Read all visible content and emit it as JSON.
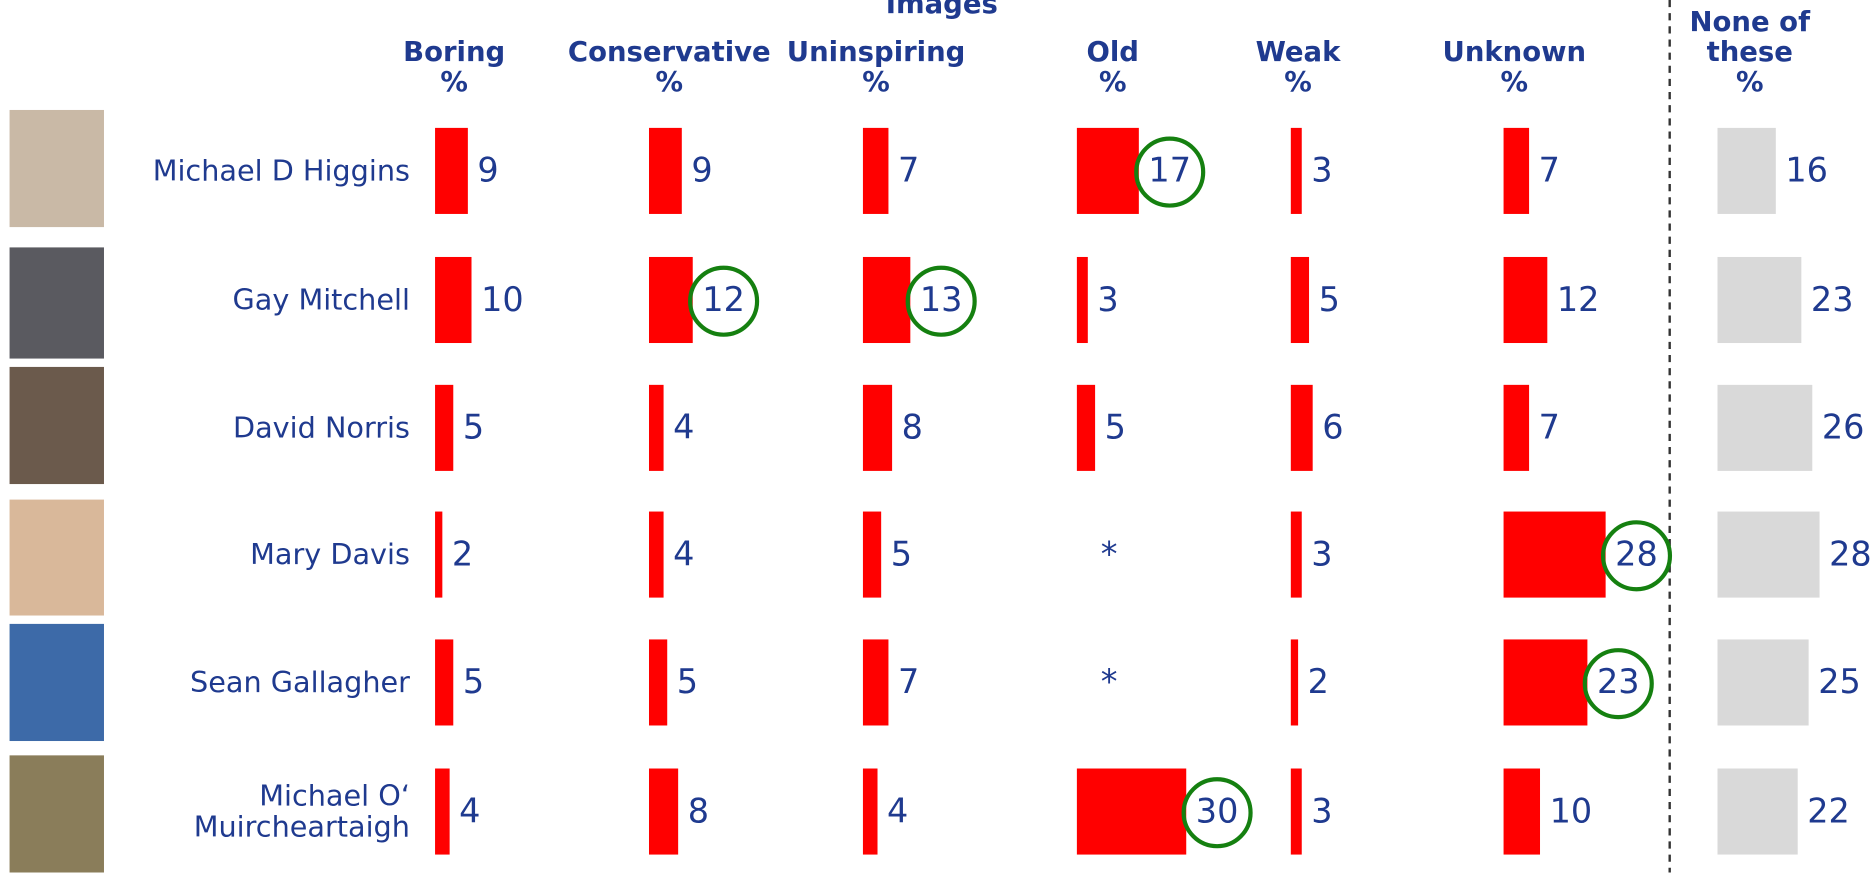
{
  "chart_data": {
    "type": "bar",
    "title": "Images",
    "unit": "%",
    "categories": [
      "Michael D Higgins",
      "Gay Mitchell",
      "David Norris",
      "Mary Davis",
      "Sean Gallagher",
      "Michael O‘ Muircheartaigh"
    ],
    "series": [
      {
        "name": "Boring",
        "color": "#ff0000",
        "values": [
          9,
          10,
          5,
          2,
          5,
          4
        ],
        "circled": []
      },
      {
        "name": "Conservative",
        "color": "#ff0000",
        "values": [
          9,
          12,
          4,
          4,
          5,
          8
        ],
        "circled": [
          1
        ]
      },
      {
        "name": "Uninspiring",
        "color": "#ff0000",
        "values": [
          7,
          13,
          8,
          5,
          7,
          4
        ],
        "circled": [
          1
        ]
      },
      {
        "name": "Old",
        "color": "#ff0000",
        "values": [
          17,
          3,
          5,
          null,
          null,
          30
        ],
        "value_labels": [
          "17",
          "3",
          "5",
          "*",
          "*",
          "30"
        ],
        "circled": [
          0,
          5
        ]
      },
      {
        "name": "Weak",
        "color": "#ff0000",
        "values": [
          3,
          5,
          6,
          3,
          2,
          3
        ],
        "circled": []
      },
      {
        "name": "Unknown",
        "color": "#ff0000",
        "values": [
          7,
          12,
          7,
          28,
          23,
          10
        ],
        "circled": [
          3,
          4
        ]
      },
      {
        "name": "None of these",
        "color": "#d9d9d9",
        "values": [
          16,
          23,
          26,
          28,
          25,
          22
        ],
        "circled": []
      }
    ],
    "circle_color": "#158010"
  }
}
